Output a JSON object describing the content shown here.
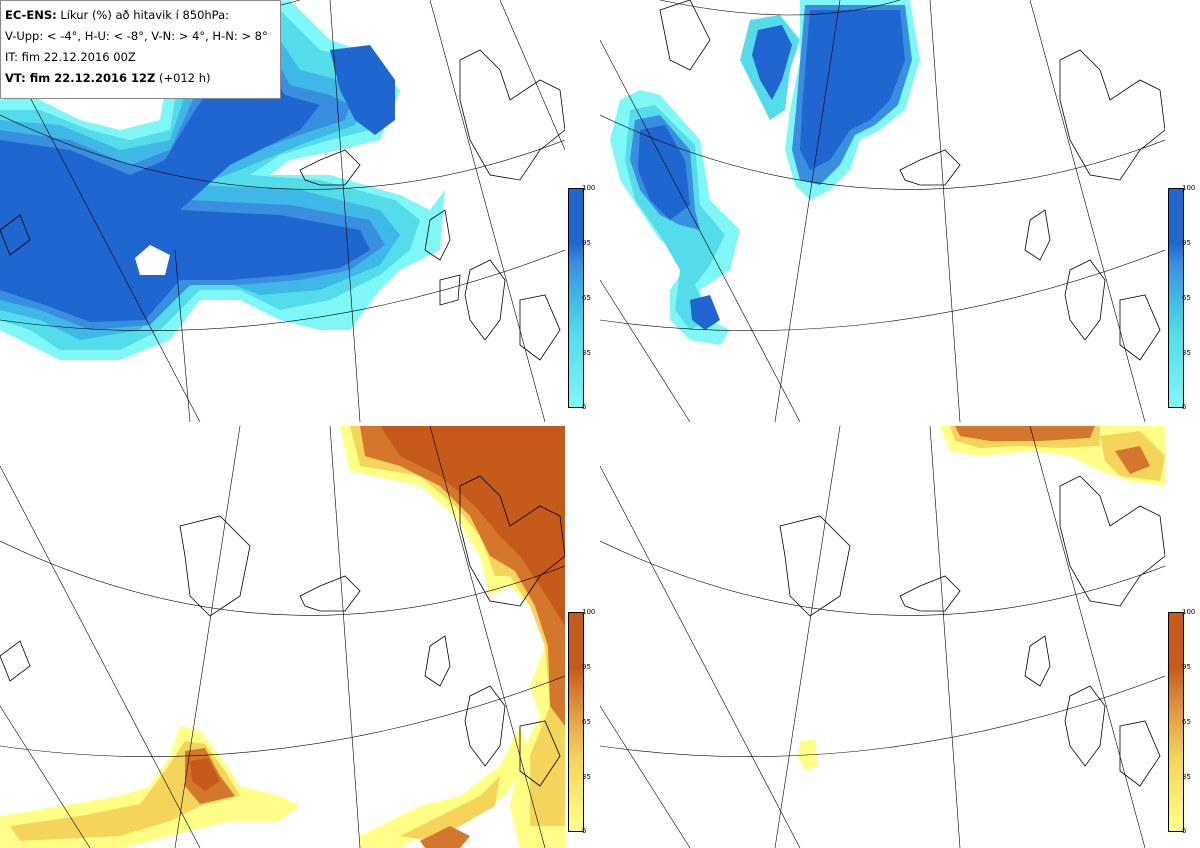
{
  "legend": {
    "line1_bold": "EC-ENS:",
    "line1_rest": " Líkur (%) að hitavik í 850hPa:",
    "line2": "V-Upp: < -4°, H-U: < -8°, V-N: > 4°, H-N: > 8°",
    "line3": "IT: fim 22.12.2016 00Z",
    "line4_bold": "VT: fim 22.12.2016 12Z",
    "line4_rest": " (+012 h)"
  },
  "colorbar_ticks": [
    "100",
    "95",
    "65",
    "35",
    "5"
  ],
  "colors": {
    "cold_scale": [
      "#7ff7f7",
      "#55dcea",
      "#3fb8e8",
      "#3a8ee0",
      "#1f66d0"
    ],
    "warm_scale": [
      "#ffff88",
      "#f4d45a",
      "#e6a64a",
      "#d4772c",
      "#c55a1a"
    ],
    "coast": "#000000",
    "grid": "#000000"
  },
  "panels": [
    {
      "id": "V-Upp",
      "scale": "cold"
    },
    {
      "id": "H-U",
      "scale": "cold"
    },
    {
      "id": "V-N",
      "scale": "warm"
    },
    {
      "id": "H-N",
      "scale": "warm"
    }
  ]
}
